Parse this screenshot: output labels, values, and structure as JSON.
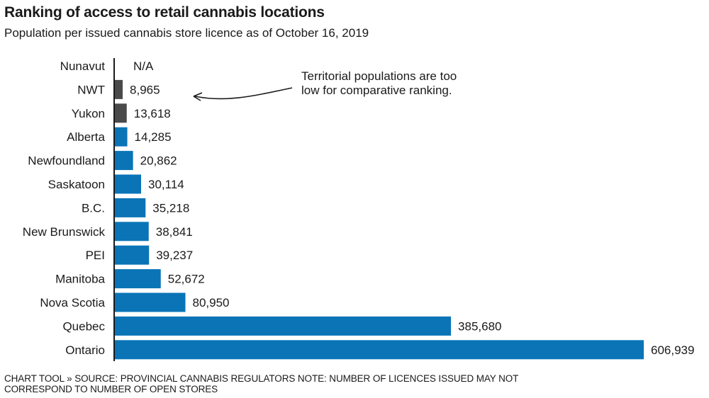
{
  "chart_data": {
    "type": "bar",
    "orientation": "horizontal",
    "title": "Ranking of access to retail cannabis locations",
    "subtitle": "Population per issued cannabis store licence as of October 16, 2019",
    "xlabel": "",
    "ylabel": "",
    "xlim": [
      0,
      606939
    ],
    "grid": false,
    "categories": [
      "Nunavut",
      "NWT",
      "Yukon",
      "Alberta",
      "Newfoundland",
      "Saskatoon",
      "B.C.",
      "New Brunswick",
      "PEI",
      "Manitoba",
      "Nova Scotia",
      "Quebec",
      "Ontario"
    ],
    "values": [
      null,
      8965,
      13618,
      14285,
      20862,
      30114,
      35218,
      38841,
      39237,
      52672,
      80950,
      385680,
      606939
    ],
    "value_labels": [
      "N/A",
      "8,965",
      "13,618",
      "14,285",
      "20,862",
      "30,114",
      "35,218",
      "38,841",
      "39,237",
      "52,672",
      "80,950",
      "385,680",
      "606,939"
    ],
    "groups": [
      "territory",
      "territory",
      "territory",
      "province",
      "province",
      "province",
      "province",
      "province",
      "province",
      "province",
      "province",
      "province",
      "province"
    ],
    "colors": {
      "territory": "#4a4a4a",
      "province": "#0a74b7",
      "axis": "#1a1a1a"
    },
    "annotation": {
      "lines": [
        "Territorial populations are too",
        "low for comparative ranking."
      ],
      "points_to": "NWT"
    },
    "footer": [
      "CHART TOOL » SOURCE: PROVINCIAL CANNABIS REGULATORS NOTE: NUMBER OF LICENCES ISSUED MAY NOT",
      "CORRESPOND TO NUMBER OF OPEN STORES"
    ]
  }
}
